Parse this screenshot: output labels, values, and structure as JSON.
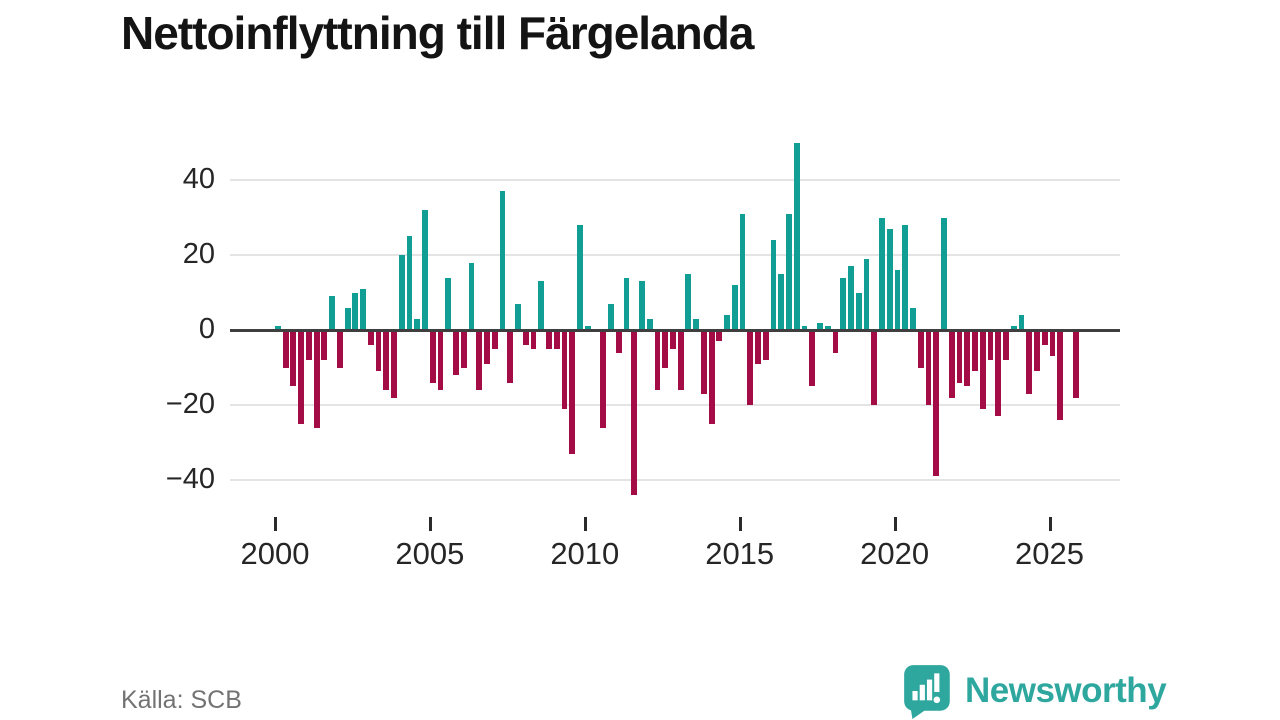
{
  "title": "Nettoinflyttning till Färgelanda",
  "source": "Källa: SCB",
  "brand": "Newsworthy",
  "colors": {
    "positive": "#119e95",
    "negative": "#a30c44",
    "axis": "#3f3f3f",
    "gridline": "#e4e4e4",
    "title_text": "#141414",
    "tick_text": "#262626",
    "source_text": "#737373",
    "brand_teal": "#2ea79e",
    "background": "#ffffff"
  },
  "chart_data": {
    "type": "bar",
    "title": "Nettoinflyttning till Färgelanda",
    "frequency": "quarterly",
    "x_start": "2000 Q1",
    "x_end": "2025 Q4",
    "values": [
      1,
      -10,
      -15,
      -25,
      -8,
      -26,
      -8,
      9,
      -10,
      6,
      10,
      11,
      -4,
      -11,
      -16,
      -18,
      20,
      25,
      3,
      32,
      -14,
      -16,
      14,
      -12,
      -10,
      18,
      -16,
      -9,
      -5,
      37,
      -14,
      7,
      -4,
      -5,
      13,
      -5,
      -5,
      -21,
      -33,
      28,
      1,
      0,
      -26,
      7,
      -6,
      14,
      -44,
      13,
      3,
      -16,
      -10,
      -5,
      -16,
      15,
      3,
      -17,
      -25,
      -3,
      4,
      12,
      31,
      -20,
      -9,
      -8,
      24,
      15,
      31,
      50,
      1,
      -15,
      2,
      1,
      -6,
      14,
      17,
      10,
      19,
      -20,
      30,
      27,
      16,
      28,
      6,
      -10,
      -20,
      -39,
      30,
      -18,
      -14,
      -15,
      -11,
      -21,
      -8,
      -23,
      -8,
      1,
      4,
      -17,
      -11,
      -4,
      -7,
      -24,
      0,
      -18
    ],
    "y_ticks": [
      {
        "value": 40,
        "label": "40"
      },
      {
        "value": 20,
        "label": "20"
      },
      {
        "value": 0,
        "label": "0"
      },
      {
        "value": -20,
        "label": "−20"
      },
      {
        "value": -40,
        "label": "−40"
      }
    ],
    "x_ticks": [
      {
        "year": 2000,
        "label": "2000"
      },
      {
        "year": 2005,
        "label": "2005"
      },
      {
        "year": 2010,
        "label": "2010"
      },
      {
        "year": 2015,
        "label": "2015"
      },
      {
        "year": 2020,
        "label": "2020"
      },
      {
        "year": 2025,
        "label": "2025"
      }
    ],
    "ylim": [
      -48,
      51
    ],
    "grid": true,
    "legend": false,
    "bar_color_rule": "teal when value >= 0, dark red when value < 0"
  }
}
